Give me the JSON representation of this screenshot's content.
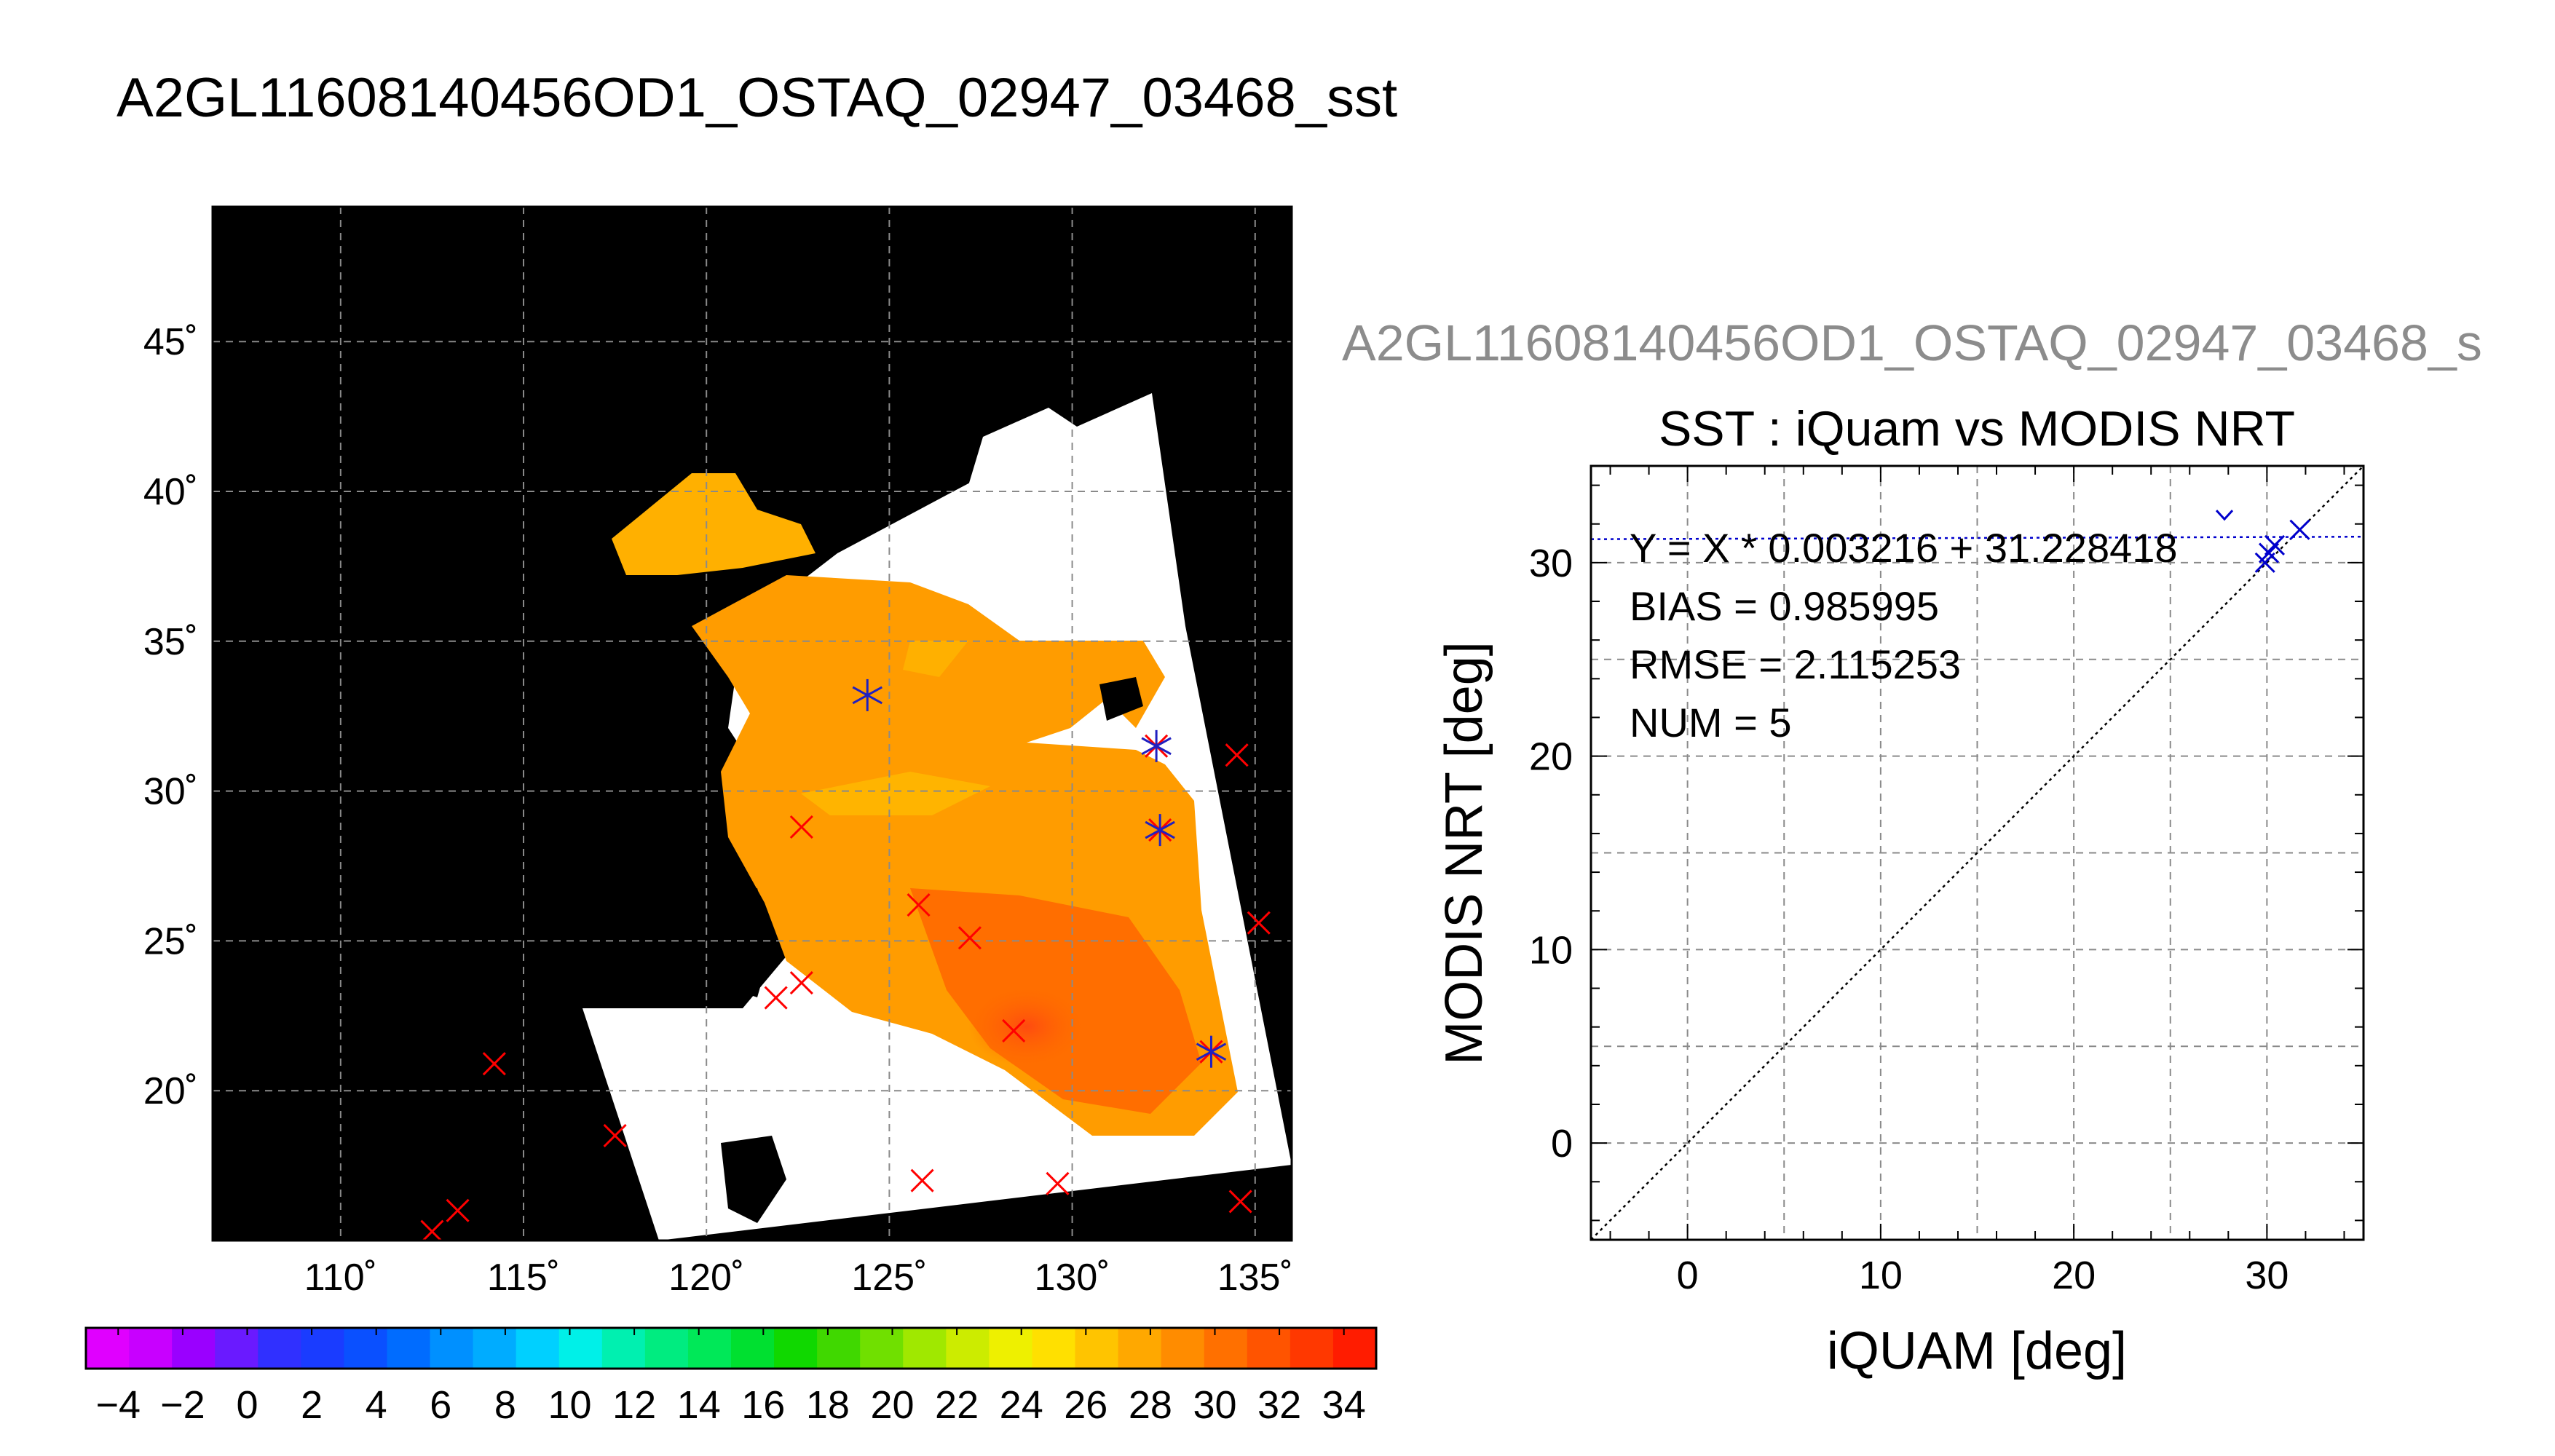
{
  "page_title": "A2GL11608140456OD1_OSTAQ_02947_03468_sst",
  "chart_data": [
    {
      "type": "map",
      "lat_ticks": [
        20,
        25,
        30,
        35,
        40,
        45
      ],
      "lon_ticks": [
        110,
        115,
        120,
        125,
        130,
        135
      ],
      "lat_labels": [
        "20˚",
        "25˚",
        "30˚",
        "35˚",
        "40˚",
        "45˚"
      ],
      "lon_labels": [
        "110˚",
        "115˚",
        "120˚",
        "125˚",
        "130˚",
        "135˚"
      ],
      "xlim": [
        106.5,
        136
      ],
      "ylim": [
        15,
        49.5
      ],
      "grid": true,
      "background_color": "#000000",
      "cloud_color": "#ffffff",
      "reference_points_red_x": [
        [
          112.5,
          15.3
        ],
        [
          113.2,
          16.0
        ],
        [
          114.2,
          20.9
        ],
        [
          117.5,
          18.5
        ],
        [
          121.9,
          23.1
        ],
        [
          122.6,
          23.6
        ],
        [
          122.6,
          28.8
        ],
        [
          125.8,
          26.2
        ],
        [
          127.2,
          25.1
        ],
        [
          125.9,
          17.0
        ],
        [
          129.6,
          16.9
        ],
        [
          132.3,
          31.5
        ],
        [
          132.4,
          28.7
        ],
        [
          134.5,
          31.2
        ],
        [
          135.1,
          25.6
        ],
        [
          134.6,
          16.3
        ],
        [
          133.8,
          21.3
        ],
        [
          128.4,
          22.0
        ]
      ],
      "matchup_points_blue_star": [
        [
          124.4,
          33.2
        ],
        [
          132.3,
          31.5
        ],
        [
          132.4,
          28.7
        ],
        [
          133.8,
          21.3
        ]
      ]
    },
    {
      "type": "colorbar",
      "range": [
        -5,
        35
      ],
      "tick_values": [
        -4,
        -2,
        0,
        2,
        4,
        6,
        8,
        10,
        12,
        14,
        16,
        18,
        20,
        22,
        24,
        26,
        28,
        30,
        32,
        34
      ],
      "tick_labels": [
        "−4",
        "−2",
        "0",
        "2",
        "4",
        "6",
        "8",
        "10",
        "12",
        "14",
        "16",
        "18",
        "20",
        "22",
        "24",
        "26",
        "28",
        "30",
        "32",
        "34"
      ],
      "colors": [
        "#e000ff",
        "#c800ff",
        "#9a00ff",
        "#6a1aff",
        "#3030ff",
        "#1a3cff",
        "#0a50ff",
        "#006cff",
        "#0090ff",
        "#00acff",
        "#00d0ff",
        "#00f0e8",
        "#00f0b0",
        "#00ec80",
        "#00e858",
        "#00e030",
        "#10d800",
        "#40d800",
        "#70e000",
        "#a0e800",
        "#ccec00",
        "#eef000",
        "#ffe000",
        "#ffc400",
        "#ffa800",
        "#ff8c00",
        "#ff7000",
        "#ff5400",
        "#ff3800",
        "#ff1c00"
      ]
    },
    {
      "type": "scatter",
      "title": "SST : iQuam vs MODIS NRT",
      "header_label": "A2GL11608140456OD1_OSTAQ_02947_03468_s",
      "xlabel": "iQUAM [deg]",
      "ylabel": "MODIS NRT [deg]",
      "xlim": [
        -5,
        35
      ],
      "ylim": [
        -5,
        35
      ],
      "xticks": [
        0,
        10,
        20,
        30
      ],
      "yticks": [
        0,
        10,
        20,
        30
      ],
      "x_tick_labels": [
        "0",
        "10",
        "20",
        "30"
      ],
      "y_tick_labels": [
        "0",
        "10",
        "20",
        "30"
      ],
      "grid": true,
      "points": [
        {
          "x": 31.7,
          "y": 31.7
        },
        {
          "x": 30.4,
          "y": 30.9
        },
        {
          "x": 30.1,
          "y": 30.5
        },
        {
          "x": 29.9,
          "y": 30.0
        },
        {
          "x": 27.8,
          "y": 32.4
        }
      ],
      "one_to_one_line": true,
      "fit_line": {
        "slope": 0.003216,
        "intercept": 31.228418
      },
      "stats": {
        "equation": "Y = X * 0.003216 + 31.228418",
        "bias": "BIAS = 0.985995",
        "rmse": "RMSE = 2.115253",
        "num": "NUM = 5"
      },
      "point_color": "#0000cc"
    }
  ]
}
